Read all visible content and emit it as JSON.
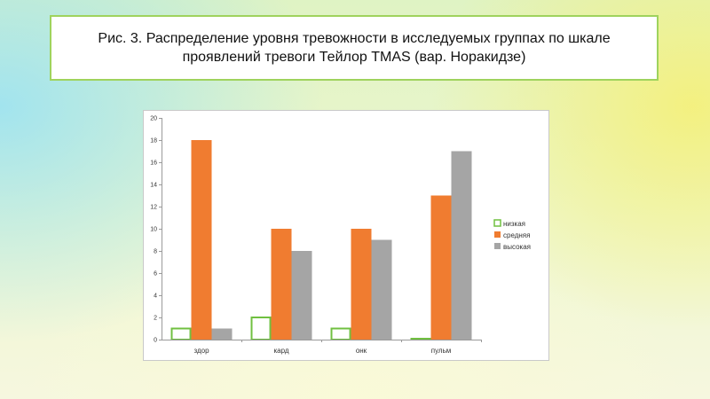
{
  "figure": {
    "caption": "Рис. 3. Распределение уровня тревожности в исследуемых группах по шкале проявлений тревоги Тейлор TMAS (вар. Норакидзе)"
  },
  "chart_data": {
    "type": "bar",
    "title": "",
    "xlabel": "",
    "ylabel": "",
    "categories": [
      "здор",
      "кард",
      "онк",
      "пульм"
    ],
    "series": [
      {
        "name": "низкая",
        "values": [
          1,
          2,
          1,
          0
        ],
        "color": "#70c040",
        "style": "outline"
      },
      {
        "name": "средняя",
        "values": [
          18,
          10,
          10,
          13
        ],
        "color": "#f07c30",
        "style": "filled"
      },
      {
        "name": "высокая",
        "values": [
          1,
          8,
          9,
          17
        ],
        "color": "#a5a5a5",
        "style": "filled"
      }
    ],
    "ylim": [
      0,
      20
    ],
    "yticks": [
      0,
      2,
      4,
      6,
      8,
      10,
      12,
      14,
      16,
      18,
      20
    ],
    "grid": false,
    "legend": "right"
  }
}
